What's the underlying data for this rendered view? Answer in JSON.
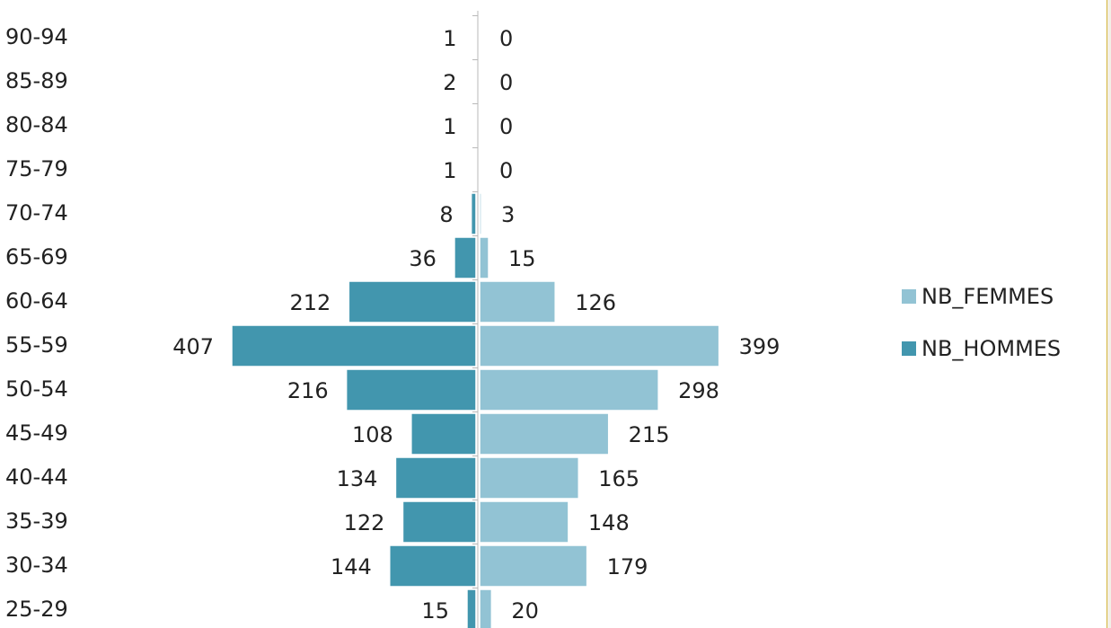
{
  "chart_data": {
    "type": "bar",
    "orientation": "horizontal",
    "layout": "population-pyramid",
    "categories": [
      "90-94",
      "85-89",
      "80-84",
      "75-79",
      "70-74",
      "65-69",
      "60-64",
      "55-59",
      "50-54",
      "45-49",
      "40-44",
      "35-39",
      "30-34",
      "25-29"
    ],
    "series": [
      {
        "name": "NB_FEMMES",
        "color": "#92c3d4",
        "side": "right",
        "values": [
          0,
          0,
          0,
          0,
          3,
          15,
          126,
          399,
          298,
          215,
          165,
          148,
          179,
          20
        ]
      },
      {
        "name": "NB_HOMMES",
        "color": "#4296ae",
        "side": "left",
        "values": [
          1,
          2,
          1,
          1,
          8,
          36,
          212,
          407,
          216,
          108,
          134,
          122,
          144,
          15
        ]
      }
    ],
    "xlim": [
      -407,
      407
    ],
    "grid": false,
    "data_labels": true,
    "legend_position": "right"
  }
}
